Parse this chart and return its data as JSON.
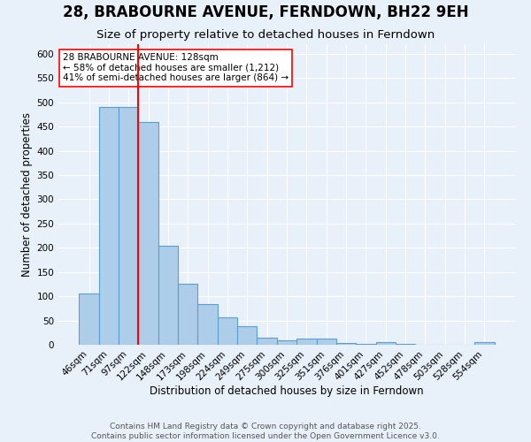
{
  "title": "28, BRABOURNE AVENUE, FERNDOWN, BH22 9EH",
  "subtitle": "Size of property relative to detached houses in Ferndown",
  "xlabel": "Distribution of detached houses by size in Ferndown",
  "ylabel": "Number of detached properties",
  "categories": [
    "46sqm",
    "71sqm",
    "97sqm",
    "122sqm",
    "148sqm",
    "173sqm",
    "198sqm",
    "224sqm",
    "249sqm",
    "275sqm",
    "300sqm",
    "325sqm",
    "351sqm",
    "376sqm",
    "401sqm",
    "427sqm",
    "452sqm",
    "478sqm",
    "503sqm",
    "528sqm",
    "554sqm"
  ],
  "values": [
    105,
    490,
    490,
    460,
    205,
    125,
    83,
    57,
    38,
    15,
    10,
    12,
    12,
    3,
    1,
    5,
    1,
    0,
    0,
    0,
    6
  ],
  "bar_color": "#aecde8",
  "bar_edge_color": "#5a9fd4",
  "vline_x": 2.5,
  "vline_color": "red",
  "annotation_text": "28 BRABOURNE AVENUE: 128sqm\n← 58% of detached houses are smaller (1,212)\n41% of semi-detached houses are larger (864) →",
  "annotation_box_color": "white",
  "annotation_box_edge": "red",
  "ylim": [
    0,
    620
  ],
  "yticks": [
    0,
    50,
    100,
    150,
    200,
    250,
    300,
    350,
    400,
    450,
    500,
    550,
    600
  ],
  "footnote": "Contains HM Land Registry data © Crown copyright and database right 2025.\nContains public sector information licensed under the Open Government Licence v3.0.",
  "background_color": "#e8f0fa",
  "plot_bg_color": "#e8f0fa",
  "title_fontsize": 12,
  "subtitle_fontsize": 9.5,
  "axis_label_fontsize": 8.5,
  "tick_fontsize": 7.5,
  "footnote_fontsize": 6.5
}
